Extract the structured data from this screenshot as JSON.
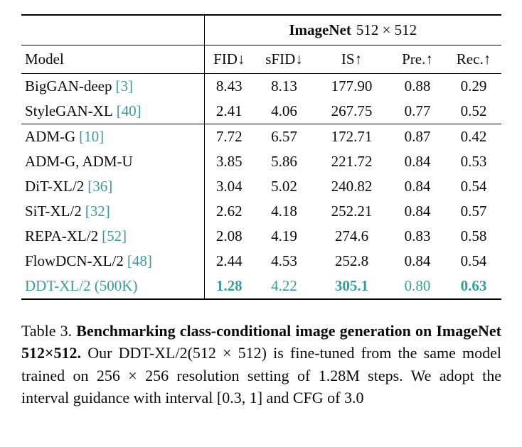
{
  "accent_color": "#3a9b9d",
  "table": {
    "span_header_name": "ImageNet",
    "span_header_size": "512 × 512",
    "columns": [
      "Model",
      "FID↓",
      "sFID↓",
      "IS↑",
      "Pre.↑",
      "Rec.↑"
    ],
    "group1": [
      {
        "name": "BigGAN-deep",
        "cite": "[3]",
        "fid": "8.43",
        "sfid": "8.13",
        "is": "177.90",
        "pre": "0.88",
        "rec": "0.29"
      },
      {
        "name": "StyleGAN-XL",
        "cite": "[40]",
        "fid": "2.41",
        "sfid": "4.06",
        "is": "267.75",
        "pre": "0.77",
        "rec": "0.52"
      }
    ],
    "group2": [
      {
        "name": "ADM-G",
        "cite": "[10]",
        "fid": "7.72",
        "sfid": "6.57",
        "is": "172.71",
        "pre": "0.87",
        "rec": "0.42"
      },
      {
        "name": "ADM-G, ADM-U",
        "cite": "",
        "fid": "3.85",
        "sfid": "5.86",
        "is": "221.72",
        "pre": "0.84",
        "rec": "0.53"
      },
      {
        "name": "DiT-XL/2",
        "cite": "[36]",
        "fid": "3.04",
        "sfid": "5.02",
        "is": "240.82",
        "pre": "0.84",
        "rec": "0.54"
      },
      {
        "name": "SiT-XL/2",
        "cite": "[32]",
        "fid": "2.62",
        "sfid": "4.18",
        "is": "252.21",
        "pre": "0.84",
        "rec": "0.57"
      },
      {
        "name": "REPA-XL/2",
        "cite": "[52]",
        "fid": "2.08",
        "sfid": "4.19",
        "is": "274.6",
        "pre": "0.83",
        "rec": "0.58"
      },
      {
        "name": "FlowDCN-XL/2",
        "cite": "[48]",
        "fid": "2.44",
        "sfid": "4.53",
        "is": "252.8",
        "pre": "0.84",
        "rec": "0.54"
      },
      {
        "name": "DDT-XL/2 (500K)",
        "cite": "",
        "fid": "1.28",
        "sfid": "4.22",
        "is": "305.1",
        "pre": "0.80",
        "rec": "0.63"
      }
    ]
  },
  "caption": {
    "label": "Table 3.",
    "title": "Benchmarking class-conditional image generation on ImageNet 512×512.",
    "body": "Our DDT-XL/2(512 × 512) is fine-tuned from the same model trained on 256 × 256 resolution setting of 1.28M steps. We adopt the interval guidance with interval [0.3, 1] and CFG of 3.0"
  }
}
